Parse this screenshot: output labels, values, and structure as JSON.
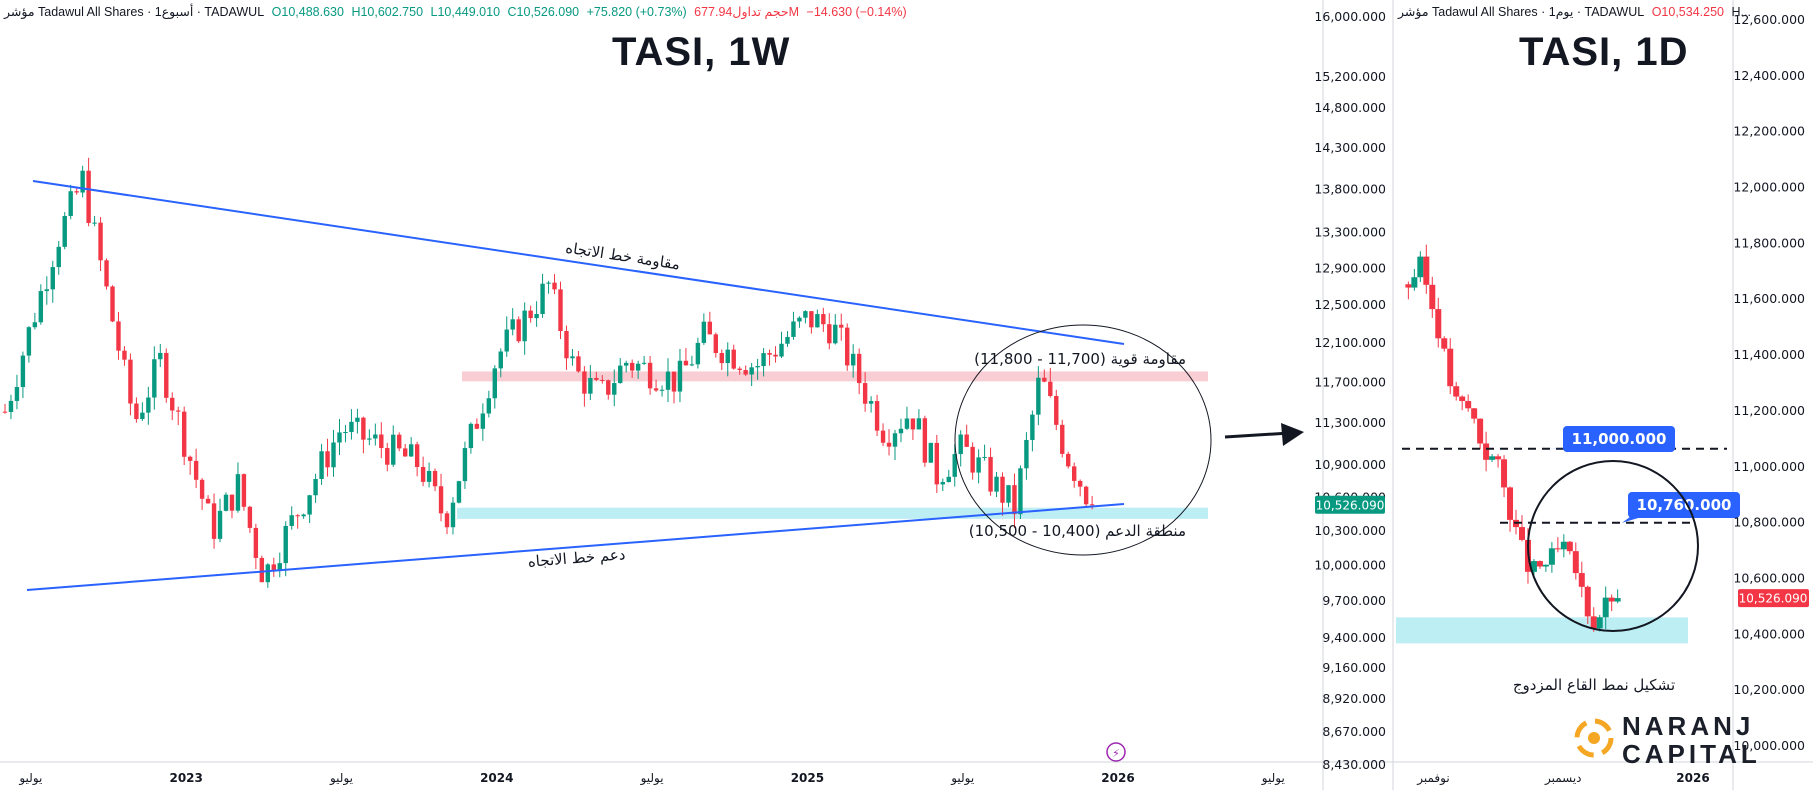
{
  "left_panel": {
    "title": "TASI, 1W",
    "legend": {
      "symbol": "مؤشر Tadawul All Shares · 1أسبوع · TADAWUL",
      "open": "O10,488.630",
      "high": "H10,602.750",
      "low": "L10,449.010",
      "close": "C10,526.090",
      "change": "+75.820 (+0.73%)",
      "volume": "حجم تداول677.94M",
      "volume_change": "−14.630 (−0.14%)"
    },
    "annotations": {
      "resistance_trendline": "مقاومة خط الاتجاه",
      "support_trendline": "دعم خط الاتجاه",
      "strong_resistance": "مقاومة قوية (11,700 - 11,800)",
      "support_zone": "منطقة الدعم (10,400 - 10,500)"
    },
    "last_price_label": "10,526.090",
    "colors": {
      "up": "#089981",
      "down": "#f23645",
      "trendline": "#2962ff",
      "resistance_zone": "#f7c6cc",
      "support_zone": "#b2ebf2",
      "price_label_bg": "#089981"
    }
  },
  "right_panel": {
    "title": "TASI, 1D",
    "legend": {
      "symbol": "مؤشر Tadawul All Shares · 1يوم · TADAWUL",
      "open": "O10,534.250",
      "high": "H..."
    },
    "callouts": [
      "11,000.000",
      "10,760.000"
    ],
    "pattern_label": "تشكيل نمط القاع المزدوج",
    "last_price_label": "10,526.090",
    "colors": {
      "callout_bg": "#2962ff",
      "price_label_bg": "#f23645"
    }
  },
  "logo": {
    "line1": "NARANJ",
    "line2": "CAPITAL",
    "colors": {
      "orange": "#f5a623",
      "dark": "#1b1f2a"
    }
  },
  "chart_data": [
    {
      "type": "candlestick",
      "title": "TASI, 1W",
      "price_scale": "log",
      "x_tick_labels": [
        "يوليو",
        "2023",
        "يوليو",
        "2024",
        "يوليو",
        "2025",
        "يوليو",
        "2026",
        "يوليو"
      ],
      "y_tick_labels": [
        "16,000.000",
        "15,200.000",
        "14,800.000",
        "14,300.000",
        "13,800.000",
        "13,300.000",
        "12,900.000",
        "12,500.000",
        "12,100.000",
        "11,700.000",
        "11,300.000",
        "10,900.000",
        "10,600.000",
        "10,300.000",
        "10,000.000",
        "9,700.000",
        "9,400.000",
        "9,160.000",
        "8,920.000",
        "8,670.000",
        "8,430.000"
      ],
      "ylim": [
        8380,
        16200
      ],
      "close_path": [
        {
          "x": "2022-06",
          "y": 11400
        },
        {
          "x": "2022-08",
          "y": 13200
        },
        {
          "x": "2022-09",
          "y": 13900
        },
        {
          "x": "2022-11",
          "y": 11300
        },
        {
          "x": "2022-12",
          "y": 11900
        },
        {
          "x": "2023-02",
          "y": 10300
        },
        {
          "x": "2023-03",
          "y": 10700
        },
        {
          "x": "2023-04",
          "y": 9900
        },
        {
          "x": "2023-07",
          "y": 11250
        },
        {
          "x": "2023-10",
          "y": 10900
        },
        {
          "x": "2023-11",
          "y": 10400
        },
        {
          "x": "2024-01",
          "y": 11950
        },
        {
          "x": "2024-03",
          "y": 12700
        },
        {
          "x": "2024-04",
          "y": 11800
        },
        {
          "x": "2024-05",
          "y": 11550
        },
        {
          "x": "2024-06",
          "y": 11900
        },
        {
          "x": "2024-08",
          "y": 11700
        },
        {
          "x": "2024-09",
          "y": 12150
        },
        {
          "x": "2024-11",
          "y": 11850
        },
        {
          "x": "2025-01",
          "y": 12350
        },
        {
          "x": "2025-02",
          "y": 12250
        },
        {
          "x": "2025-04",
          "y": 11200
        },
        {
          "x": "2025-05",
          "y": 11400
        },
        {
          "x": "2025-06",
          "y": 10800
        },
        {
          "x": "2025-07",
          "y": 11050
        },
        {
          "x": "2025-09",
          "y": 10500
        },
        {
          "x": "2025-10",
          "y": 11750
        },
        {
          "x": "2025-11",
          "y": 11000
        },
        {
          "x": "2025-12",
          "y": 10526
        }
      ],
      "zones": [
        {
          "name": "مقاومة قوية",
          "from": 11700,
          "to": 11800
        },
        {
          "name": "منطقة الدعم",
          "from": 10400,
          "to": 10500
        }
      ],
      "last_price": 10526.09
    },
    {
      "type": "candlestick",
      "title": "TASI, 1D",
      "x_tick_labels": [
        "نوفمبر",
        "ديسمبر",
        "2026"
      ],
      "y_tick_labels": [
        "12,600.000",
        "12,400.000",
        "12,200.000",
        "12,000.000",
        "11,800.000",
        "11,600.000",
        "11,400.000",
        "11,200.000",
        "11,000.000",
        "10,800.000",
        "10,600.000",
        "10,400.000",
        "10,200.000",
        "10,000.000"
      ],
      "ylim": [
        9960,
        12640
      ],
      "close_path": [
        {
          "x": "2025-10-26",
          "y": 11650
        },
        {
          "x": "2025-10-29",
          "y": 11720
        },
        {
          "x": "2025-11-02",
          "y": 11500
        },
        {
          "x": "2025-11-06",
          "y": 11230
        },
        {
          "x": "2025-11-10",
          "y": 11200
        },
        {
          "x": "2025-11-13",
          "y": 11050
        },
        {
          "x": "2025-11-16",
          "y": 11020
        },
        {
          "x": "2025-11-20",
          "y": 10800
        },
        {
          "x": "2025-11-24",
          "y": 10620
        },
        {
          "x": "2025-11-27",
          "y": 10640
        },
        {
          "x": "2025-12-01",
          "y": 10710
        },
        {
          "x": "2025-12-04",
          "y": 10620
        },
        {
          "x": "2025-12-08",
          "y": 10430
        },
        {
          "x": "2025-12-11",
          "y": 10500
        },
        {
          "x": "2025-12-14",
          "y": 10560
        }
      ],
      "levels": [
        11000,
        10760
      ],
      "zone": {
        "from": 10400,
        "to": 10500
      },
      "last_price": 10526.09
    }
  ]
}
